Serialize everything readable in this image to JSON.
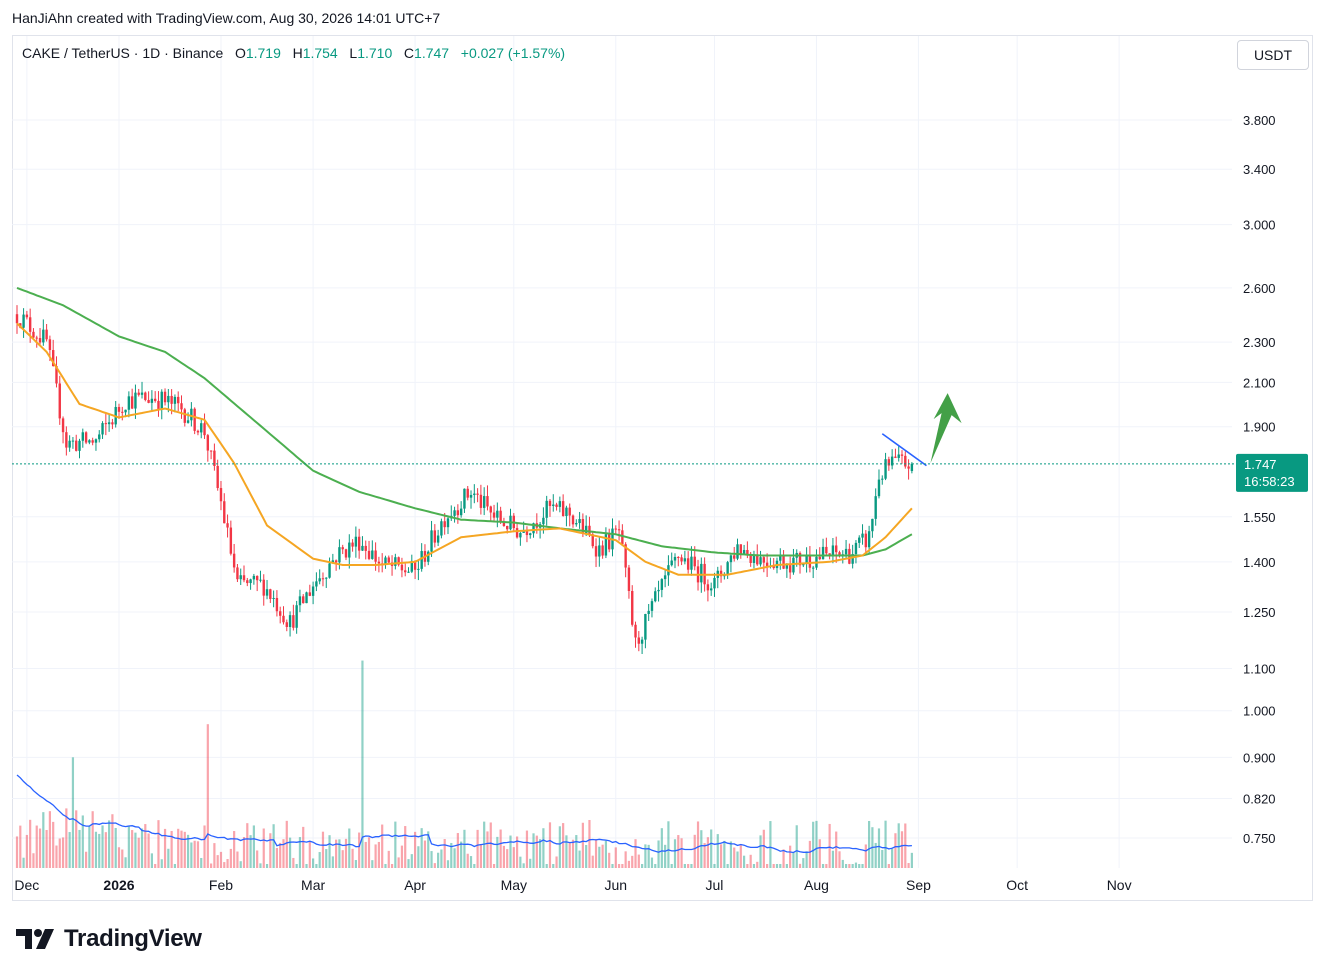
{
  "credit": "HanJiAhn created with TradingView.com, Aug 30, 2026 14:01 UTC+7",
  "legend": {
    "symbol": "CAKE / TetherUS · 1D · Binance",
    "o_label": "O",
    "o": "1.719",
    "h_label": "H",
    "h": "1.754",
    "l_label": "L",
    "l": "1.710",
    "c_label": "C",
    "c": "1.747",
    "change": "+0.027 (+1.57%)"
  },
  "currency_button": "USDT",
  "price_tag": {
    "price": "1.747",
    "countdown": "16:58:23",
    "color": "#089981"
  },
  "logo_text": "TradingView",
  "colors": {
    "up": "#089981",
    "down": "#f23645",
    "ma_fast": "#f5a623",
    "ma_slow": "#4caf50",
    "vol_ma": "#2962ff",
    "arrow": "#43a047",
    "trendline": "#2962ff"
  },
  "chart_data": {
    "type": "candlestick",
    "price_scale": "log",
    "y_ticks": [
      "3.800",
      "3.400",
      "3.000",
      "2.600",
      "2.300",
      "2.100",
      "1.900",
      "1.550",
      "1.400",
      "1.250",
      "1.100",
      "1.000",
      "0.900",
      "0.820",
      "0.750"
    ],
    "x_ticks": [
      "Dec",
      "2026",
      "Feb",
      "Mar",
      "Apr",
      "May",
      "Jun",
      "Jul",
      "Aug",
      "Sep",
      "Oct",
      "Nov"
    ],
    "last_price": 1.747,
    "price_anchors": [
      [
        "Dec 1",
        2.45
      ],
      [
        "Dec 10",
        2.3
      ],
      [
        "Dec 16",
        1.83
      ],
      [
        "Dec 25",
        1.84
      ],
      [
        "Jan 3",
        2.02
      ],
      [
        "Jan 12",
        2.03
      ],
      [
        "Jan 20",
        1.98
      ],
      [
        "Jan 27",
        1.88
      ],
      [
        "Feb 1",
        1.6
      ],
      [
        "Feb 6",
        1.33
      ],
      [
        "Feb 14",
        1.33
      ],
      [
        "Feb 22",
        1.22
      ],
      [
        "Mar 1",
        1.33
      ],
      [
        "Mar 8",
        1.42
      ],
      [
        "Mar 15",
        1.47
      ],
      [
        "Mar 22",
        1.39
      ],
      [
        "Apr 1",
        1.37
      ],
      [
        "Apr 10",
        1.55
      ],
      [
        "Apr 18",
        1.64
      ],
      [
        "Apr 25",
        1.55
      ],
      [
        "May 3",
        1.5
      ],
      [
        "May 12",
        1.58
      ],
      [
        "May 18",
        1.56
      ],
      [
        "May 27",
        1.44
      ],
      [
        "Jun 2",
        1.5
      ],
      [
        "Jun 7",
        1.16
      ],
      [
        "Jun 14",
        1.3
      ],
      [
        "Jun 20",
        1.42
      ],
      [
        "Jul 1",
        1.33
      ],
      [
        "Jul 8",
        1.45
      ],
      [
        "Jul 15",
        1.41
      ],
      [
        "Jul 25",
        1.4
      ],
      [
        "Aug 3",
        1.42
      ],
      [
        "Aug 12",
        1.43
      ],
      [
        "Aug 17",
        1.48
      ],
      [
        "Aug 20",
        1.7
      ],
      [
        "Aug 24",
        1.75
      ],
      [
        "Aug 30",
        1.747
      ]
    ],
    "ma_fast": [
      [
        "Dec 1",
        2.4
      ],
      [
        "Dec 10",
        2.25
      ],
      [
        "Dec 20",
        2.0
      ],
      [
        "Jan 1",
        1.94
      ],
      [
        "Jan 15",
        1.98
      ],
      [
        "Jan 27",
        1.93
      ],
      [
        "Feb 5",
        1.75
      ],
      [
        "Feb 15",
        1.52
      ],
      [
        "Mar 1",
        1.41
      ],
      [
        "Mar 10",
        1.39
      ],
      [
        "Mar 20",
        1.39
      ],
      [
        "Apr 1",
        1.4
      ],
      [
        "Apr 15",
        1.48
      ],
      [
        "May 1",
        1.5
      ],
      [
        "May 15",
        1.51
      ],
      [
        "Jun 1",
        1.47
      ],
      [
        "Jun 10",
        1.4
      ],
      [
        "Jun 20",
        1.36
      ],
      [
        "Jul 5",
        1.36
      ],
      [
        "Jul 20",
        1.39
      ],
      [
        "Aug 5",
        1.4
      ],
      [
        "Aug 15",
        1.42
      ],
      [
        "Aug 22",
        1.48
      ],
      [
        "Aug 30",
        1.58
      ]
    ],
    "ma_slow": [
      [
        "Dec 1",
        2.6
      ],
      [
        "Dec 15",
        2.5
      ],
      [
        "Jan 1",
        2.33
      ],
      [
        "Jan 15",
        2.25
      ],
      [
        "Jan 27",
        2.12
      ],
      [
        "Feb 15",
        1.88
      ],
      [
        "Mar 1",
        1.72
      ],
      [
        "Mar 15",
        1.64
      ],
      [
        "Apr 1",
        1.58
      ],
      [
        "Apr 15",
        1.54
      ],
      [
        "May 1",
        1.53
      ],
      [
        "May 15",
        1.51
      ],
      [
        "Jun 1",
        1.49
      ],
      [
        "Jun 15",
        1.45
      ],
      [
        "Jul 1",
        1.43
      ],
      [
        "Jul 15",
        1.42
      ],
      [
        "Aug 1",
        1.42
      ],
      [
        "Aug 15",
        1.42
      ],
      [
        "Aug 22",
        1.44
      ],
      [
        "Aug 30",
        1.49
      ]
    ],
    "trendline": [
      [
        "Aug 21",
        1.87
      ],
      [
        "Sep 1",
        1.74
      ]
    ],
    "projection_arrow": {
      "from": [
        "Sep 1",
        1.75
      ],
      "to": [
        "Sep 5",
        2.05
      ]
    },
    "volume_spikes": [
      [
        "Dec 18",
        0.9
      ],
      [
        "Jan 28",
        0.97
      ],
      [
        "Mar 16",
        1.12
      ],
      [
        "Aug 22",
        0.78
      ]
    ]
  }
}
